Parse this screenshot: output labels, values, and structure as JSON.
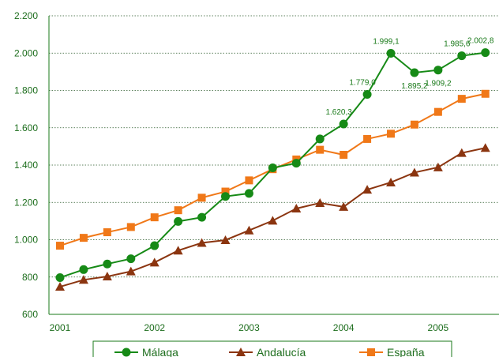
{
  "chart_data": {
    "type": "line",
    "categories": [
      "2001",
      null,
      null,
      null,
      "2002",
      null,
      null,
      null,
      "2003",
      null,
      null,
      null,
      "2004",
      null,
      null,
      null,
      "2005",
      null,
      null
    ],
    "series": [
      {
        "name": "Málaga",
        "color": "#168a16",
        "marker": "circle",
        "values": [
          797,
          840,
          870,
          898,
          968,
          1098,
          1120,
          1232,
          1248,
          1385,
          1410,
          1540,
          1620.3,
          1779.0,
          1999.1,
          1895.2,
          1909.2,
          1985.6,
          2002.8
        ],
        "value_labels": [
          null,
          null,
          null,
          null,
          null,
          null,
          null,
          null,
          null,
          null,
          null,
          null,
          "1.620,3",
          "1.779,0",
          "1.999,1",
          "1.895,2",
          "1.909,2",
          "1.985,6",
          "2.002,8"
        ]
      },
      {
        "name": "Andalucía",
        "color": "#8b3510",
        "marker": "triangle",
        "values": [
          748,
          785,
          803,
          830,
          878,
          942,
          983,
          998,
          1050,
          1102,
          1167,
          1197,
          1176,
          1268,
          1307,
          1360,
          1388,
          1465,
          1492
        ]
      },
      {
        "name": "España",
        "color": "#f07818",
        "marker": "square",
        "values": [
          968,
          1010,
          1040,
          1068,
          1120,
          1158,
          1225,
          1258,
          1318,
          1378,
          1430,
          1482,
          1455,
          1540,
          1568,
          1617,
          1685,
          1755,
          1782
        ]
      }
    ],
    "ylim": [
      600,
      2200
    ],
    "yticks": [
      600,
      800,
      {
        "value": 1000,
        "label": "1.000"
      },
      {
        "value": 1200,
        "label": "1.200"
      },
      {
        "value": 1400,
        "label": "1.400"
      },
      {
        "value": 1600,
        "label": "1.600"
      },
      {
        "value": 1800,
        "label": "1.800"
      },
      {
        "value": 2000,
        "label": "2.000"
      },
      {
        "value": 2200,
        "label": "2.200"
      }
    ],
    "grid": true
  }
}
